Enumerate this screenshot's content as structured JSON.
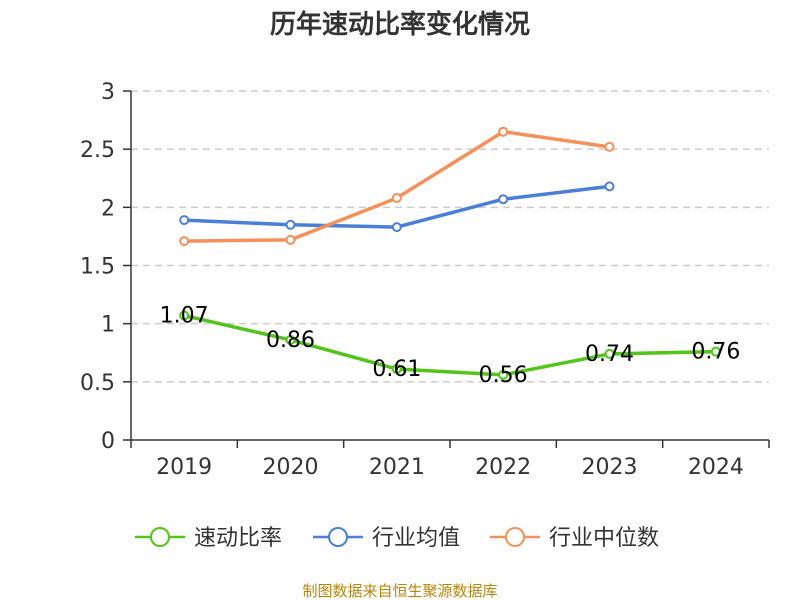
{
  "chart_data": {
    "type": "line",
    "title": "历年速动比率变化情况",
    "categories": [
      "2019",
      "2020",
      "2021",
      "2022",
      "2023",
      "2024"
    ],
    "ylim": [
      0,
      3
    ],
    "yticks": [
      "0",
      "0.5",
      "1",
      "1.5",
      "2",
      "2.5",
      "3"
    ],
    "grid": true,
    "legend_position": "bottom",
    "series": [
      {
        "name": "速动比率",
        "color": "#52c41a",
        "values": [
          1.07,
          0.86,
          0.61,
          0.56,
          0.74,
          0.76
        ],
        "labels": [
          "1.07",
          "0.86",
          "0.61",
          "0.56",
          "0.74",
          "0.76"
        ]
      },
      {
        "name": "行业均值",
        "color": "#4a7fd8",
        "values": [
          1.89,
          1.85,
          1.83,
          2.07,
          2.18,
          null
        ]
      },
      {
        "name": "行业中位数",
        "color": "#f5905a",
        "values": [
          1.71,
          1.72,
          2.08,
          2.65,
          2.52,
          null
        ]
      }
    ]
  },
  "footer": "制图数据来自恒生聚源数据库"
}
